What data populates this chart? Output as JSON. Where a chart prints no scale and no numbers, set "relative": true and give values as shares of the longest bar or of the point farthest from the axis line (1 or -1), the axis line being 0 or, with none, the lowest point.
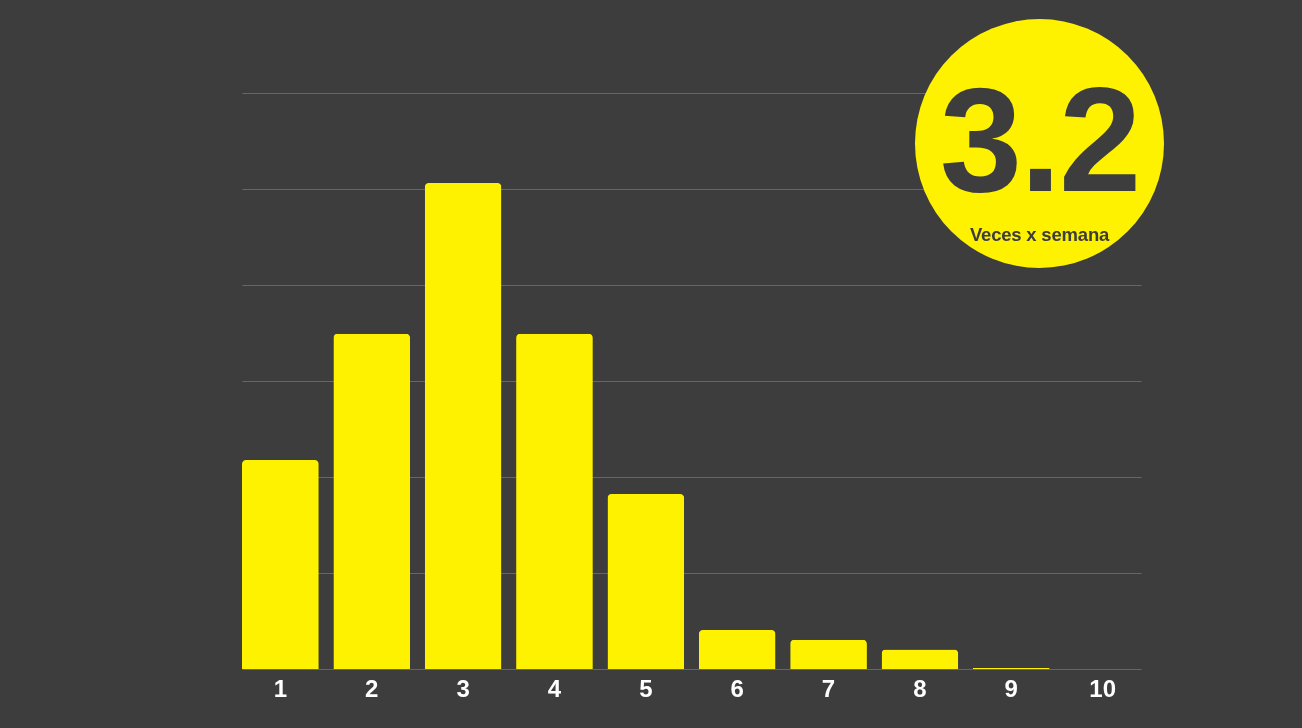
{
  "chart_data": {
    "type": "bar",
    "categories": [
      "1",
      "2",
      "3",
      "4",
      "5",
      "6",
      "7",
      "8",
      "9",
      "10"
    ],
    "values": [
      0.43,
      0.69,
      1,
      0.69,
      0.36,
      0.08,
      0.06,
      0.04,
      0.002,
      0
    ],
    "color": "#fff200",
    "relative": true,
    "grid": "y",
    "annotations": [
      "3.2",
      "Veces x semana"
    ]
  }
}
